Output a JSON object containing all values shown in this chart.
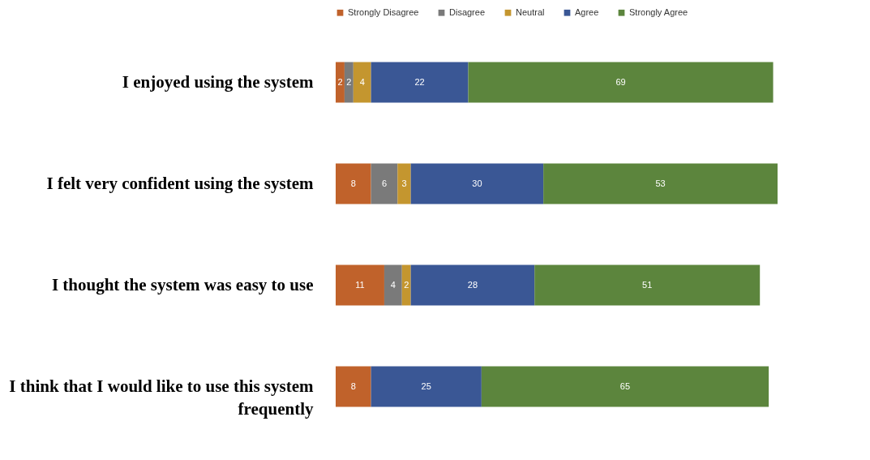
{
  "chart_data": {
    "type": "bar",
    "orientation": "horizontal",
    "stacked": true,
    "data_labels": true,
    "legend": "top",
    "categories": [
      "I enjoyed using the system",
      "I felt very confident using the system",
      "I thought the system was easy to use",
      "I think that I would like to use this system frequently"
    ],
    "series": [
      {
        "name": "Strongly Disagree",
        "color": "#c0622b",
        "values": [
          2,
          8,
          11,
          8
        ]
      },
      {
        "name": "Disagree",
        "color": "#7a7a7a",
        "values": [
          2,
          6,
          4,
          null
        ]
      },
      {
        "name": "Neutral",
        "color": "#c4962f",
        "values": [
          4,
          3,
          2,
          null
        ]
      },
      {
        "name": "Agree",
        "color": "#3a5795",
        "values": [
          22,
          30,
          28,
          25
        ]
      },
      {
        "name": "Strongly Agree",
        "color": "#5c853d",
        "values": [
          69,
          53,
          51,
          65
        ]
      }
    ]
  }
}
